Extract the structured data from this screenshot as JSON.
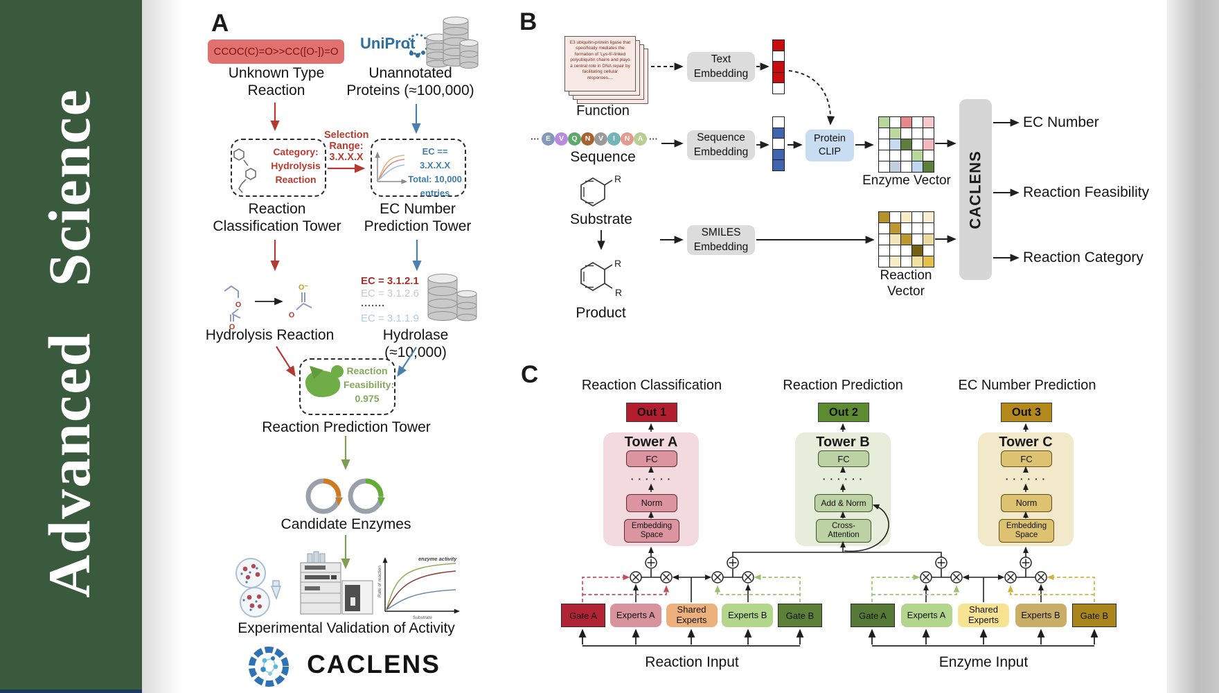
{
  "brand": {
    "journal_vertical": "Advanced  Science"
  },
  "panelA": {
    "letter": "A",
    "smiles_reaction": "CCOC(C)=O>>CC([O-])=O",
    "unknown_type_label": "Unknown Type\nReaction",
    "uniprot_label": "UniProt",
    "unannotated_label": "Unannotated\nProteins (≈100,000)",
    "selection_label": "Selection\nRange:\n3.X.X.X",
    "category_box_label": "Category:\nHydrolysis\nReaction",
    "ec_range_box_label": "EC == 3.X.X.X\nTotal: 10,000\nentries",
    "reaction_classification_tower": "Reaction\nClassification Tower",
    "ec_number_prediction_tower": "EC Number\nPrediction Tower",
    "hydrolysis_reaction_label": "Hydrolysis Reaction",
    "hydrolase_label": "Hydrolase (≈10,000)",
    "ec_list": [
      {
        "text": "EC = 3.1.2.1",
        "color": "#a93029",
        "weight": 700
      },
      {
        "text": "EC = 3.1.2.6",
        "color": "#c9c9c9",
        "weight": 400
      },
      {
        "text": "·······",
        "color": "#555555",
        "weight": 700
      },
      {
        "text": "EC = 3.1.1.9",
        "color": "#b3cbe2",
        "weight": 400
      }
    ],
    "enzyme_badge_label": "Enzyme",
    "feasibility_label": "Reaction\nFeasibility:\n0.975",
    "reaction_prediction_tower": "Reaction Prediction Tower",
    "candidate_enzymes_label": "Candidate Enzymes",
    "validation_label": "Experimental Validation of Activity",
    "activity_plot": {
      "curve_label": "enzyme activity",
      "ylabel": "Rate of reaction",
      "xlabel": "Substrate"
    },
    "atoms": {
      "o": "O",
      "o_minus": "O⁻"
    },
    "logo_wordmark": "CACLENS"
  },
  "panelB": {
    "letter": "B",
    "function_doc_text": "E3 ubiquitin-protein ligase that specifically mediates the formation of 'Lys-6'-linked polyubiquitin chains and plays a central role in DNA repair by facilitating cellular responses....",
    "function_label": "Function",
    "sequence_label": "Sequence",
    "sequence_ellipsis": "···",
    "residues": [
      {
        "letter": "E",
        "color": "#8299b8"
      },
      {
        "letter": "V",
        "color": "#b98ade"
      },
      {
        "letter": "Q",
        "color": "#5ea96a"
      },
      {
        "letter": "N",
        "color": "#a8622f"
      },
      {
        "letter": "V",
        "color": "#9b9b9b"
      },
      {
        "letter": "I",
        "color": "#72b4b8"
      },
      {
        "letter": "N",
        "color": "#e59a90"
      },
      {
        "letter": "A",
        "color": "#b9cf92"
      }
    ],
    "substrate_label": "Substrate",
    "product_label": "Product",
    "r_group": "R",
    "text_embedding_box": "Text\nEmbedding",
    "sequence_embedding_box": "Sequence\nEmbedding",
    "smiles_embedding_box": "SMILES\nEmbedding",
    "protein_clip_box": "Protein\nCLIP",
    "text_vector_cells": [
      "#c50f0f",
      "#ffffff",
      "#c50f0f",
      "#c50f0f",
      "#ffffff"
    ],
    "sequence_vector_cells": [
      "#ffffff",
      "#4064ae",
      "#ffffff",
      "#4064ae",
      "#4064ae"
    ],
    "enzyme_vector": {
      "label": "Enzyme Vector",
      "cells": [
        [
          "#b9d79c",
          "#ffffff",
          "#e4888b",
          "#ffffff",
          "#f5c9ca"
        ],
        [
          "#ffffff",
          "#bcd89e",
          "#ffffff",
          "#ffffff",
          "#ffffff"
        ],
        [
          "#ffffff",
          "#c8daf0",
          "#5d7e3c",
          "#ffffff",
          "#f2b9bc"
        ],
        [
          "#ffffff",
          "#ffffff",
          "#ffffff",
          "#b9d79c",
          "#ffffff"
        ],
        [
          "#ffffff",
          "#c3cfdf",
          "#ffffff",
          "#c0d5ef",
          "#5d7e3c"
        ]
      ]
    },
    "reaction_vector": {
      "label": "Reaction Vector",
      "cells": [
        [
          "#b5912c",
          "#ffffff",
          "#f6ecc8",
          "#ffffff",
          "#f8efd2"
        ],
        [
          "#ffffff",
          "#bd9830",
          "#ffffff",
          "#ffffff",
          "#ffffff"
        ],
        [
          "#ffffff",
          "#f3e6bd",
          "#bd9830",
          "#ffffff",
          "#ead9a0"
        ],
        [
          "#ffffff",
          "#ffffff",
          "#ffffff",
          "#746014",
          "#ffffff"
        ],
        [
          "#ffffff",
          "#f6ecc8",
          "#ffffff",
          "#f3e0a0",
          "#e3c04a"
        ]
      ]
    },
    "caclens_block": "CACLENS",
    "outputs": [
      "EC Number",
      "Reaction Feasibility",
      "Reaction Category"
    ]
  },
  "panelC": {
    "letter": "C",
    "columns": [
      {
        "title": "Reaction Classification",
        "out": "Out 1",
        "out_color": "#b21e2d",
        "tower": "Tower A",
        "fc": "FC",
        "dots": "· · · · · ·",
        "mid": "Norm",
        "bottom": "Embedding\nSpace"
      },
      {
        "title": "Reaction Prediction",
        "out": "Out 2",
        "out_color": "#5d8c30",
        "tower": "Tower B",
        "fc": "FC",
        "dots": "· · · · · ·",
        "mid": "Add & Norm",
        "bottom": "Cross-\nAttention"
      },
      {
        "title": "EC Number Prediction",
        "out": "Out 3",
        "out_color": "#b3891b",
        "tower": "Tower C",
        "fc": "FC",
        "dots": "· · · · · ·",
        "mid": "Norm",
        "bottom": "Embedding\nSpace"
      }
    ],
    "moe_groups": [
      {
        "input_label": "Reaction Input",
        "boxes": [
          {
            "label": "Gate A",
            "color": "#b22435",
            "type": "gate"
          },
          {
            "label": "Experts A",
            "color": "#d9939c",
            "type": "expert"
          },
          {
            "label": "Shared Experts",
            "color": "#ecb07c",
            "type": "expert"
          },
          {
            "label": "Experts B",
            "color": "#b2d78c",
            "type": "expert"
          },
          {
            "label": "Gate B",
            "color": "#5d8038",
            "type": "gate"
          }
        ]
      },
      {
        "input_label": "Enzyme Input",
        "boxes": [
          {
            "label": "Gate A",
            "color": "#567a36",
            "type": "gate"
          },
          {
            "label": "Experts A",
            "color": "#b2d78c",
            "type": "expert"
          },
          {
            "label": "Shared Experts",
            "color": "#f7e391",
            "type": "expert"
          },
          {
            "label": "Experts B",
            "color": "#c9ae67",
            "type": "expert"
          },
          {
            "label": "Gate B",
            "color": "#aa851b",
            "type": "gate"
          }
        ]
      }
    ]
  }
}
